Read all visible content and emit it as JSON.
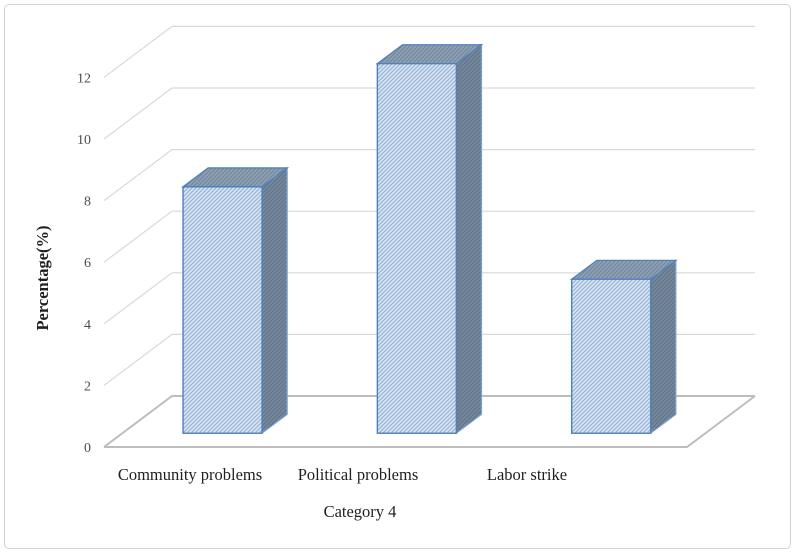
{
  "chart_data": {
    "type": "bar",
    "variant": "3d-column-hatched",
    "title": "",
    "xlabel": "Category 4",
    "ylabel": "Percentage(%)",
    "categories": [
      "Community problems",
      "Political problems",
      "Labor strike"
    ],
    "values": [
      8,
      12,
      5
    ],
    "yticks": [
      0,
      2,
      4,
      6,
      8,
      10,
      12
    ],
    "ylim": [
      0,
      12
    ],
    "grid": true,
    "legend": false,
    "colors": {
      "background": "#ffffff",
      "frame_border": "#d2d2d2",
      "gridline": "#d9d9d9",
      "floor_line": "#bdbdbd",
      "bar_border": "#4f81bd",
      "bar_side_border": "#7ea3cf",
      "bar_front_fill": "#dce6f2",
      "bar_front_hatch": "#95b3d7",
      "bar_side_fill": "#76889c",
      "bar_side_hatch": "#5f7288",
      "bar_top_fill": "#8ea0b4",
      "bar_top_hatch": "#73879c",
      "tick_text": "#4d4d4d",
      "label_text": "#1f1f1f"
    }
  }
}
